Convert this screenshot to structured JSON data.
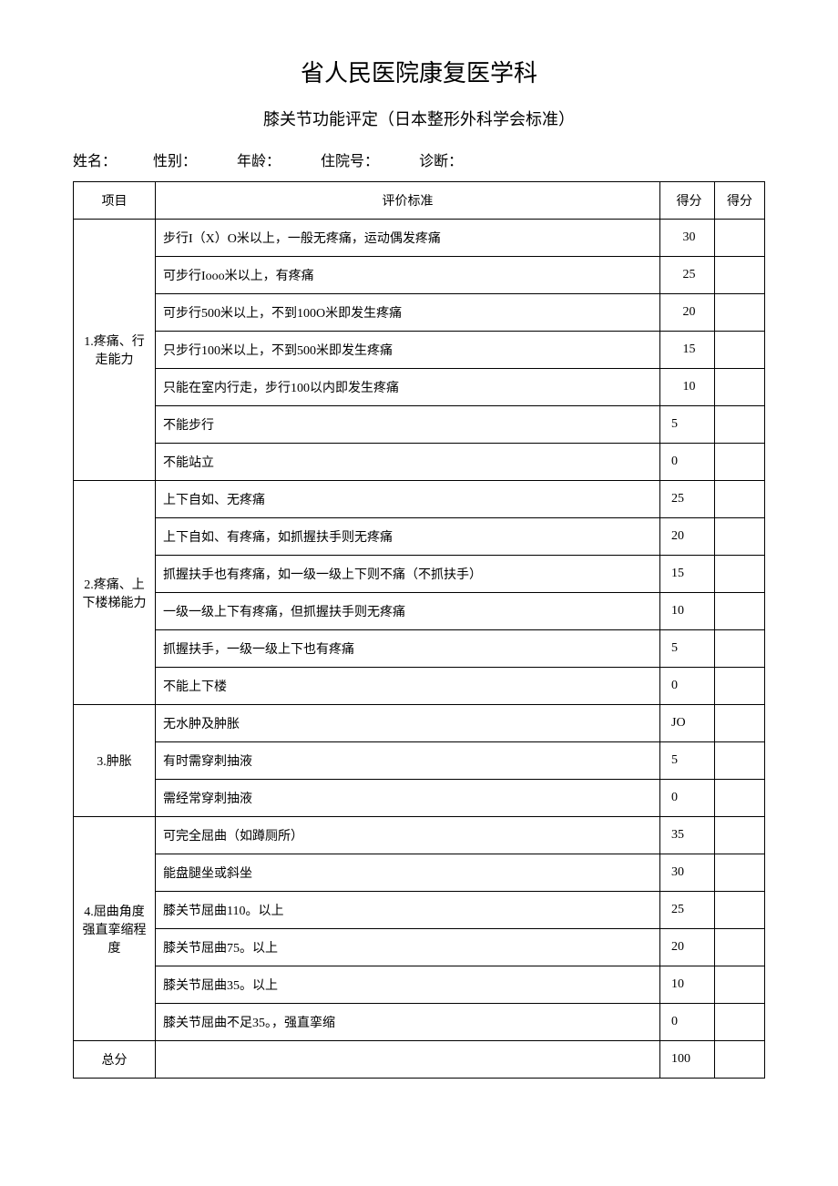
{
  "title": "省人民医院康复医学科",
  "subtitle": "膝关节功能评定（日本整形外科学会标准）",
  "info": {
    "name_label": "姓名：",
    "gender_label": "性别：",
    "age_label": "年龄：",
    "admission_label": "住院号：",
    "diagnosis_label": "诊断："
  },
  "headers": {
    "category": "项目",
    "criteria": "评价标准",
    "score1": "得分",
    "score2": "得分"
  },
  "sections": [
    {
      "category": "1.疼痛、行走能力",
      "rows": [
        {
          "criteria": "步行I（X）O米以上，一般无疼痛，运动偶发疼痛",
          "score": "30"
        },
        {
          "criteria": "可步行Iooo米以上，有疼痛",
          "score": "25"
        },
        {
          "criteria": "可步行500米以上，不到100O米即发生疼痛",
          "score": "20"
        },
        {
          "criteria": "只步行100米以上，不到500米即发生疼痛",
          "score": "15"
        },
        {
          "criteria": "只能在室内行走，步行100以内即发生疼痛",
          "score": "10"
        },
        {
          "criteria": "不能步行",
          "score": "5"
        },
        {
          "criteria": "不能站立",
          "score": "0"
        }
      ]
    },
    {
      "category": "2.疼痛、上下楼梯能力",
      "rows": [
        {
          "criteria": "上下自如、无疼痛",
          "score": "25"
        },
        {
          "criteria": "上下自如、有疼痛，如抓握扶手则无疼痛",
          "score": "20"
        },
        {
          "criteria": "抓握扶手也有疼痛，如一级一级上下则不痛（不抓扶手）",
          "score": "15"
        },
        {
          "criteria": "一级一级上下有疼痛，但抓握扶手则无疼痛",
          "score": "10"
        },
        {
          "criteria": "抓握扶手，一级一级上下也有疼痛",
          "score": "5"
        },
        {
          "criteria": "不能上下楼",
          "score": "0"
        }
      ]
    },
    {
      "category": "3.肿胀",
      "rows": [
        {
          "criteria": "无水肿及肿胀",
          "score": "JO"
        },
        {
          "criteria": "有时需穿刺抽液",
          "score": "5"
        },
        {
          "criteria": "需经常穿刺抽液",
          "score": "0"
        }
      ]
    },
    {
      "category": "4.屈曲角度强直挛缩程度",
      "rows": [
        {
          "criteria": "可完全屈曲（如蹲厕所）",
          "score": "35"
        },
        {
          "criteria": "能盘腿坐或斜坐",
          "score": "30"
        },
        {
          "criteria": "膝关节屈曲110。以上",
          "score": "25"
        },
        {
          "criteria": "膝关节屈曲75。以上",
          "score": "20"
        },
        {
          "criteria": "膝关节屈曲35。以上",
          "score": "10"
        },
        {
          "criteria": "膝关节屈曲不足35。，强直挛缩",
          "score": "0"
        }
      ]
    }
  ],
  "total": {
    "label": "总分",
    "score": "100"
  }
}
